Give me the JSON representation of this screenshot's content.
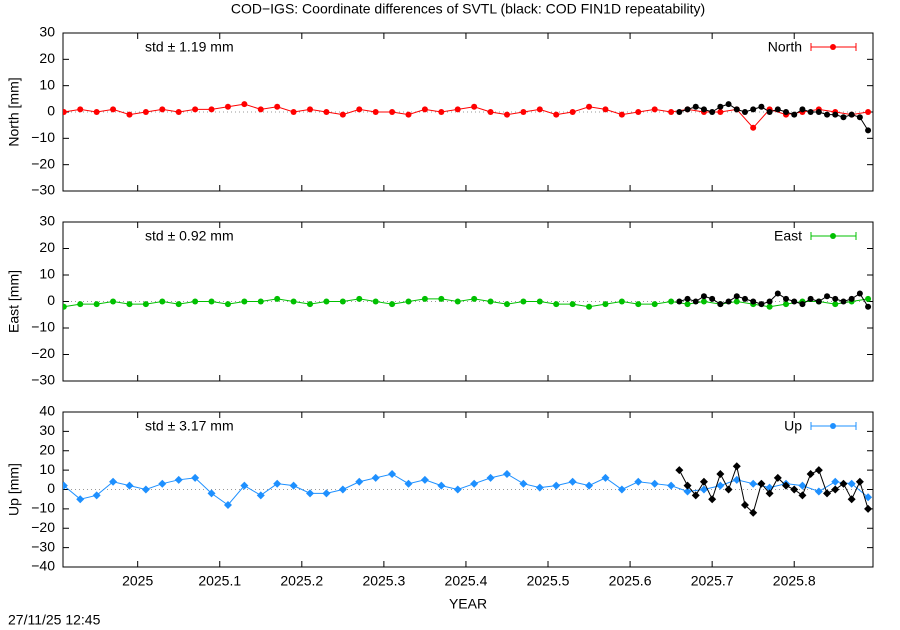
{
  "title": "COD−IGS: Coordinate differences of SVTL (black: COD FIN1D repeatability)",
  "timestamp": "27/11/25 12:45",
  "chart_data": [
    {
      "type": "line",
      "ylabel": "North [mm]",
      "annotation": "std ± 1.19 mm",
      "annotation_color": "#ff0000",
      "xlim": [
        2024.909,
        2025.896
      ],
      "ylim": [
        -30,
        30
      ],
      "yticks": [
        {
          "value": -30,
          "label": "−30"
        },
        {
          "value": -20,
          "label": "−20"
        },
        {
          "value": -10,
          "label": "−10"
        },
        0,
        10,
        20,
        30
      ],
      "series": [
        {
          "name": "North",
          "color": "#ff0000",
          "marker": "circle",
          "x": [
            2024.91,
            2024.93,
            2024.95,
            2024.97,
            2024.99,
            2025.01,
            2025.03,
            2025.05,
            2025.07,
            2025.09,
            2025.11,
            2025.13,
            2025.15,
            2025.17,
            2025.19,
            2025.21,
            2025.23,
            2025.25,
            2025.27,
            2025.29,
            2025.31,
            2025.33,
            2025.35,
            2025.37,
            2025.39,
            2025.41,
            2025.43,
            2025.45,
            2025.47,
            2025.49,
            2025.51,
            2025.53,
            2025.55,
            2025.57,
            2025.59,
            2025.61,
            2025.63,
            2025.65,
            2025.67,
            2025.69,
            2025.71,
            2025.73,
            2025.75,
            2025.77,
            2025.79,
            2025.81,
            2025.83,
            2025.85,
            2025.87,
            2025.89
          ],
          "values": [
            0,
            1,
            0,
            1,
            -1,
            0,
            1,
            0,
            1,
            1,
            2,
            3,
            1,
            2,
            0,
            1,
            0,
            -1,
            1,
            0,
            0,
            -1,
            1,
            0,
            1,
            2,
            0,
            -1,
            0,
            1,
            -1,
            0,
            2,
            1,
            -1,
            0,
            1,
            0,
            1,
            0,
            0,
            1,
            -6,
            1,
            -1,
            0,
            1,
            0,
            -1,
            0
          ]
        },
        {
          "color": "#000000",
          "marker": "circle",
          "x": [
            2025.66,
            2025.67,
            2025.68,
            2025.69,
            2025.7,
            2025.71,
            2025.72,
            2025.73,
            2025.74,
            2025.75,
            2025.76,
            2025.77,
            2025.78,
            2025.79,
            2025.8,
            2025.81,
            2025.82,
            2025.83,
            2025.84,
            2025.85,
            2025.86,
            2025.87,
            2025.88,
            2025.89
          ],
          "values": [
            0,
            1,
            2,
            1,
            0,
            2,
            3,
            1,
            0,
            1,
            2,
            0,
            1,
            0,
            -1,
            1,
            0,
            0,
            -1,
            -1,
            -2,
            -1,
            -2,
            -7
          ]
        }
      ]
    },
    {
      "type": "line",
      "ylabel": "East [mm]",
      "annotation": "std ± 0.92 mm",
      "annotation_color": "#00c000",
      "xlim": [
        2024.909,
        2025.896
      ],
      "ylim": [
        -30,
        30
      ],
      "yticks": [
        {
          "value": -30,
          "label": "−30"
        },
        {
          "value": -20,
          "label": "−20"
        },
        {
          "value": -10,
          "label": "−10"
        },
        0,
        10,
        20,
        30
      ],
      "series": [
        {
          "name": "East",
          "color": "#00c000",
          "marker": "circle",
          "x": [
            2024.91,
            2024.93,
            2024.95,
            2024.97,
            2024.99,
            2025.01,
            2025.03,
            2025.05,
            2025.07,
            2025.09,
            2025.11,
            2025.13,
            2025.15,
            2025.17,
            2025.19,
            2025.21,
            2025.23,
            2025.25,
            2025.27,
            2025.29,
            2025.31,
            2025.33,
            2025.35,
            2025.37,
            2025.39,
            2025.41,
            2025.43,
            2025.45,
            2025.47,
            2025.49,
            2025.51,
            2025.53,
            2025.55,
            2025.57,
            2025.59,
            2025.61,
            2025.63,
            2025.65,
            2025.67,
            2025.69,
            2025.71,
            2025.73,
            2025.75,
            2025.77,
            2025.79,
            2025.81,
            2025.83,
            2025.85,
            2025.87,
            2025.89
          ],
          "values": [
            -2,
            -1,
            -1,
            0,
            -1,
            -1,
            0,
            -1,
            0,
            0,
            -1,
            0,
            0,
            1,
            0,
            -1,
            0,
            0,
            1,
            0,
            -1,
            0,
            1,
            1,
            0,
            1,
            0,
            -1,
            0,
            0,
            -1,
            -1,
            -2,
            -1,
            0,
            -1,
            -1,
            0,
            -1,
            0,
            -1,
            0,
            -1,
            -2,
            -1,
            0,
            0,
            -1,
            0,
            1
          ]
        },
        {
          "color": "#000000",
          "marker": "circle",
          "x": [
            2025.66,
            2025.67,
            2025.68,
            2025.69,
            2025.7,
            2025.71,
            2025.72,
            2025.73,
            2025.74,
            2025.75,
            2025.76,
            2025.77,
            2025.78,
            2025.79,
            2025.8,
            2025.81,
            2025.82,
            2025.83,
            2025.84,
            2025.85,
            2025.86,
            2025.87,
            2025.88,
            2025.89
          ],
          "values": [
            0,
            1,
            0,
            2,
            1,
            -1,
            0,
            2,
            1,
            0,
            -1,
            0,
            3,
            1,
            0,
            -1,
            1,
            0,
            2,
            1,
            0,
            1,
            3,
            -2
          ]
        }
      ]
    },
    {
      "type": "line",
      "ylabel": "Up [mm]",
      "annotation": "std ± 3.17 mm",
      "annotation_color": "#1e90ff",
      "xlabel": "YEAR",
      "xlim": [
        2024.909,
        2025.896
      ],
      "xticks": [
        2025,
        2025.1,
        2025.2,
        2025.3,
        2025.4,
        2025.5,
        2025.6,
        2025.7,
        2025.8
      ],
      "ylim": [
        -40,
        40
      ],
      "yticks": [
        {
          "value": -40,
          "label": "−40"
        },
        {
          "value": -30,
          "label": "−30"
        },
        {
          "value": -20,
          "label": "−20"
        },
        {
          "value": -10,
          "label": "−10"
        },
        0,
        10,
        20,
        30,
        40
      ],
      "series": [
        {
          "name": "Up",
          "color": "#1e90ff",
          "marker": "diamond",
          "x": [
            2024.91,
            2024.93,
            2024.95,
            2024.97,
            2024.99,
            2025.01,
            2025.03,
            2025.05,
            2025.07,
            2025.09,
            2025.11,
            2025.13,
            2025.15,
            2025.17,
            2025.19,
            2025.21,
            2025.23,
            2025.25,
            2025.27,
            2025.29,
            2025.31,
            2025.33,
            2025.35,
            2025.37,
            2025.39,
            2025.41,
            2025.43,
            2025.45,
            2025.47,
            2025.49,
            2025.51,
            2025.53,
            2025.55,
            2025.57,
            2025.59,
            2025.61,
            2025.63,
            2025.65,
            2025.67,
            2025.69,
            2025.71,
            2025.73,
            2025.75,
            2025.77,
            2025.79,
            2025.81,
            2025.83,
            2025.85,
            2025.87,
            2025.89
          ],
          "values": [
            2,
            -5,
            -3,
            4,
            2,
            0,
            3,
            5,
            6,
            -2,
            -8,
            2,
            -3,
            3,
            2,
            -2,
            -2,
            0,
            4,
            6,
            8,
            3,
            5,
            2,
            0,
            3,
            6,
            8,
            3,
            1,
            2,
            4,
            2,
            6,
            0,
            4,
            3,
            2,
            -1,
            0,
            2,
            5,
            3,
            1,
            3,
            2,
            -1,
            4,
            3,
            -4
          ]
        },
        {
          "color": "#000000",
          "marker": "diamond",
          "x": [
            2025.66,
            2025.67,
            2025.68,
            2025.69,
            2025.7,
            2025.71,
            2025.72,
            2025.73,
            2025.74,
            2025.75,
            2025.76,
            2025.77,
            2025.78,
            2025.79,
            2025.8,
            2025.81,
            2025.82,
            2025.83,
            2025.84,
            2025.85,
            2025.86,
            2025.87,
            2025.88,
            2025.89
          ],
          "values": [
            10,
            2,
            -3,
            4,
            -5,
            8,
            0,
            12,
            -8,
            -12,
            3,
            -2,
            6,
            2,
            0,
            -3,
            8,
            10,
            -2,
            0,
            3,
            -5,
            4,
            -10
          ]
        }
      ]
    }
  ]
}
